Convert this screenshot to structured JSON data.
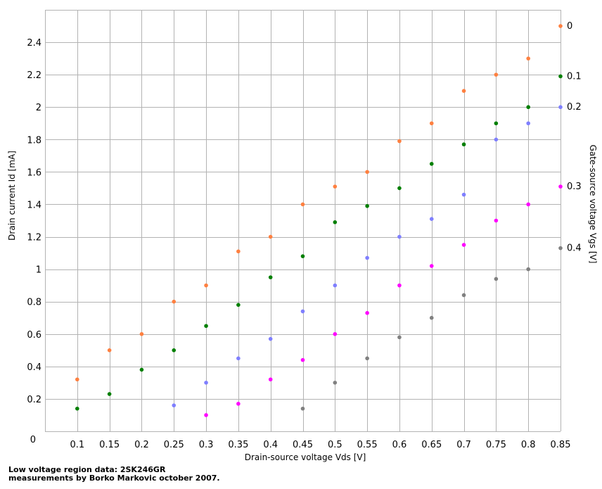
{
  "chart_data": {
    "type": "scatter",
    "xlabel": "Drain-source voltage   Vds [V]",
    "ylabel": "Drain current    Id [mA]",
    "right_label": "Gate-source voltage  Vgs [V]",
    "xlim": [
      0.05,
      0.85
    ],
    "ylim": [
      0,
      2.6
    ],
    "x_ticks": [
      "0.1",
      "0.15",
      "0.2",
      "0.25",
      "0.3",
      "0.35",
      "0.4",
      "0.45",
      "0.5",
      "0.55",
      "0.6",
      "0.65",
      "0.7",
      "0.75",
      "0.8",
      "0.85"
    ],
    "y_ticks": [
      "0",
      "0.2",
      "0.4",
      "0.6",
      "0.8",
      "1",
      "1.2",
      "1.4",
      "1.6",
      "1.8",
      "2",
      "2.2",
      "2.4"
    ],
    "grid": true,
    "series": [
      {
        "name": "0",
        "color": "#ff8040",
        "x": [
          0.1,
          0.15,
          0.2,
          0.25,
          0.3,
          0.35,
          0.4,
          0.45,
          0.5,
          0.55,
          0.6,
          0.65,
          0.7,
          0.75,
          0.8,
          0.85
        ],
        "y": [
          0.32,
          0.5,
          0.6,
          0.8,
          0.9,
          1.11,
          1.2,
          1.4,
          1.51,
          1.6,
          1.79,
          1.9,
          2.1,
          2.2,
          2.3,
          2.5
        ]
      },
      {
        "name": "0.1",
        "color": "#007f00",
        "x": [
          0.1,
          0.15,
          0.2,
          0.25,
          0.3,
          0.35,
          0.4,
          0.45,
          0.5,
          0.55,
          0.6,
          0.65,
          0.7,
          0.75,
          0.8,
          0.85
        ],
        "y": [
          0.14,
          0.23,
          0.38,
          0.5,
          0.65,
          0.78,
          0.95,
          1.08,
          1.29,
          1.39,
          1.5,
          1.65,
          1.77,
          1.9,
          2.0,
          2.19
        ]
      },
      {
        "name": "0.2",
        "color": "#7f7fff",
        "x": [
          0.25,
          0.3,
          0.35,
          0.4,
          0.45,
          0.5,
          0.55,
          0.6,
          0.65,
          0.7,
          0.75,
          0.8,
          0.85
        ],
        "y": [
          0.16,
          0.3,
          0.45,
          0.57,
          0.74,
          0.9,
          1.07,
          1.2,
          1.31,
          1.46,
          1.8,
          1.9,
          2.0
        ]
      },
      {
        "name": "0.3",
        "color": "#ff00ff",
        "x": [
          0.3,
          0.35,
          0.4,
          0.45,
          0.5,
          0.55,
          0.6,
          0.65,
          0.7,
          0.75,
          0.8,
          0.85
        ],
        "y": [
          0.1,
          0.17,
          0.32,
          0.44,
          0.6,
          0.73,
          0.9,
          1.02,
          1.15,
          1.3,
          1.4,
          1.51
        ]
      },
      {
        "name": "0.4",
        "color": "#808080",
        "x": [
          0.45,
          0.5,
          0.55,
          0.6,
          0.65,
          0.7,
          0.75,
          0.8,
          0.85
        ],
        "y": [
          0.14,
          0.3,
          0.45,
          0.58,
          0.7,
          0.84,
          0.94,
          1.0,
          1.13
        ]
      }
    ]
  },
  "caption": {
    "line1": "Low voltage region data: 2SK246GR",
    "line2": "measurements by Borko Markovic  october 2007."
  }
}
